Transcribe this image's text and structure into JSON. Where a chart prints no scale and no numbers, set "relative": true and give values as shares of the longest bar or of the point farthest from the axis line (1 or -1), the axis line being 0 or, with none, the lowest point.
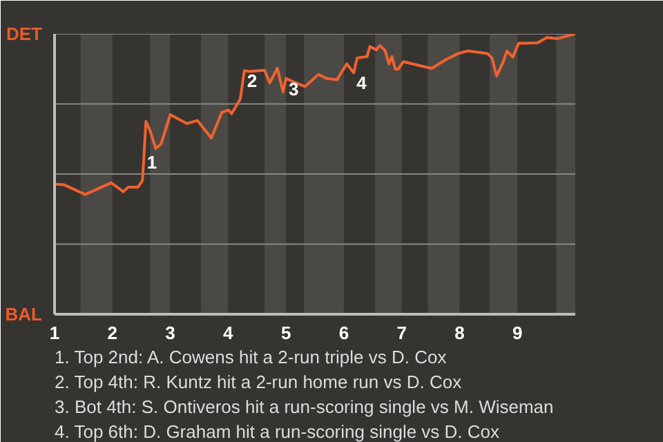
{
  "chart_data": {
    "type": "line",
    "relative": true,
    "x": [
      1,
      1.16,
      1.53,
      1.98,
      2.19,
      2.27,
      2.44,
      2.52,
      2.58,
      2.65,
      2.75,
      2.84,
      3.0,
      3.29,
      3.47,
      3.71,
      3.89,
      4.01,
      4.06,
      4.21,
      4.28,
      4.36,
      4.63,
      4.72,
      4.85,
      4.95,
      5.0,
      5.14,
      5.33,
      5.56,
      5.7,
      5.88,
      6.05,
      6.17,
      6.23,
      6.4,
      6.45,
      6.56,
      6.62,
      6.71,
      6.78,
      6.83,
      6.89,
      6.94,
      7.03,
      7.35,
      7.52,
      7.77,
      7.98,
      8.14,
      8.48,
      8.56,
      8.64,
      8.75,
      8.82,
      8.92,
      9.02,
      9.35,
      9.51,
      9.7,
      10.0
    ],
    "series": [
      {
        "color": "#f0622f",
        "values": [
          0.464,
          0.462,
          0.427,
          0.469,
          0.437,
          0.453,
          0.453,
          0.477,
          0.688,
          0.655,
          0.591,
          0.607,
          0.712,
          0.68,
          0.691,
          0.628,
          0.72,
          0.728,
          0.715,
          0.768,
          0.869,
          0.866,
          0.87,
          0.825,
          0.877,
          0.793,
          0.841,
          0.828,
          0.812,
          0.855,
          0.841,
          0.836,
          0.893,
          0.861,
          0.914,
          0.919,
          0.955,
          0.943,
          0.958,
          0.942,
          0.893,
          0.919,
          0.874,
          0.874,
          0.901,
          0.885,
          0.877,
          0.909,
          0.93,
          0.939,
          0.93,
          0.914,
          0.85,
          0.898,
          0.939,
          0.917,
          0.966,
          0.968,
          0.987,
          0.983,
          1.0
        ]
      }
    ],
    "xlim": [
      1,
      10
    ],
    "xticks": [
      1,
      2,
      3,
      4,
      5,
      6,
      7,
      8,
      9
    ],
    "marker": "none",
    "line_style": "solid",
    "ref_lines": [
      {
        "axis": "y",
        "value": 0.25,
        "color": "#8a8886"
      },
      {
        "axis": "y",
        "value": 0.5,
        "color": "#8a8886"
      },
      {
        "axis": "y",
        "value": 0.75,
        "color": "#8a8886"
      },
      {
        "axis": "y",
        "value": 1.0,
        "color": "#8a8886"
      }
    ],
    "bands": [
      {
        "axis": "x",
        "from": 1.45,
        "to": 2.0,
        "color": "#4b4946"
      },
      {
        "axis": "x",
        "from": 2.65,
        "to": 3.0,
        "color": "#4b4946"
      },
      {
        "axis": "x",
        "from": 3.53,
        "to": 4.0,
        "color": "#4b4946"
      },
      {
        "axis": "x",
        "from": 4.63,
        "to": 5.0,
        "color": "#4b4946"
      },
      {
        "axis": "x",
        "from": 5.31,
        "to": 6.0,
        "color": "#4b4946"
      },
      {
        "axis": "x",
        "from": 6.54,
        "to": 7.0,
        "color": "#4b4946"
      },
      {
        "axis": "x",
        "from": 7.45,
        "to": 8.0,
        "color": "#4b4946"
      },
      {
        "axis": "x",
        "from": 8.52,
        "to": 9.0,
        "color": "#4b4946"
      },
      {
        "axis": "x",
        "from": 9.67,
        "to": 10.0,
        "color": "#4b4946"
      }
    ],
    "annotations": [
      "DET",
      "BAL",
      {
        "text": "1",
        "x": 2.55,
        "y": 0.58
      },
      {
        "text": "2",
        "x": 4.28,
        "y": 0.869
      },
      {
        "text": "3",
        "x": 5.0,
        "y": 0.841
      },
      {
        "text": "4",
        "x": 6.17,
        "y": 0.861
      },
      "1. Top 2nd: A. Cowens hit a 2-run triple vs D. Cox",
      "2. Top 4th: R. Kuntz hit a 2-run home run vs D. Cox",
      "3. Bot 4th: S. Ontiveros hit a run-scoring single vs M. Wiseman",
      "4. Top 6th: D. Graham hit a run-scoring single vs D. Cox"
    ]
  }
}
